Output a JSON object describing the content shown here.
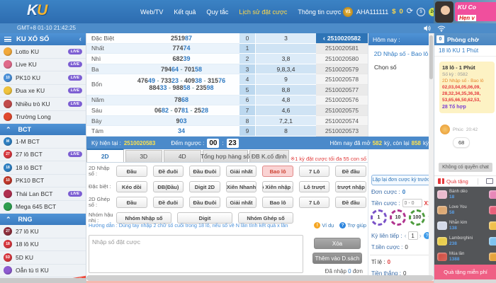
{
  "topbar": {
    "logo": {
      "k": "K",
      "u": "U"
    },
    "nav": [
      {
        "id": "webtv",
        "label": "Web/TV"
      },
      {
        "id": "ket-qua",
        "label": "Kết quả"
      },
      {
        "id": "quy-tac",
        "label": "Quy tắc"
      },
      {
        "id": "lich-su-dat-cuoc",
        "label": "Lịch sử đặt cược"
      },
      {
        "id": "thong-tin-cuoc",
        "label": "Thông tin cược",
        "chevron": true
      }
    ],
    "active_index": 3,
    "user": {
      "level": "V1",
      "name": "AHA111111",
      "currency": "$",
      "balance": "0"
    },
    "quick_icons": [
      {
        "name": "refresh-icon",
        "glyph": "⟳"
      },
      {
        "name": "dollar-icon",
        "glyph": "$"
      },
      {
        "name": "24h-icon",
        "glyph": "24"
      }
    ],
    "banner": {
      "line1": "KU Co",
      "line2": "Hẹn v"
    }
  },
  "timebar": {
    "gmt": "GMT+8 01-10 21:42:25"
  },
  "sidebar": {
    "header": "KU XỔ SỐ",
    "back_chevron": "‹",
    "rows": [
      {
        "type": "item",
        "label": "Lotto KU",
        "live": true,
        "icon": {
          "color": "#f2a93b",
          "text": ""
        }
      },
      {
        "type": "item",
        "label": "Live KU",
        "live": true,
        "icon": {
          "color": "#e06a8a",
          "text": ""
        }
      },
      {
        "type": "item",
        "label": "PK10 KU",
        "live": true,
        "icon": {
          "color": "#4a90d9",
          "text": "10"
        }
      },
      {
        "type": "item",
        "label": "Đua xe KU",
        "live": true,
        "icon": {
          "color": "#f0c33c",
          "text": ""
        }
      },
      {
        "type": "item",
        "label": "Nhiều trò KU",
        "live": true,
        "icon": {
          "color": "#c24b4b",
          "text": ""
        }
      },
      {
        "type": "item",
        "label": "Trường Long",
        "live": false,
        "icon": {
          "color": "#e0492e",
          "text": ""
        }
      },
      {
        "type": "section",
        "label": "BCT"
      },
      {
        "type": "item",
        "label": "1-M BCT",
        "live": false,
        "icon": {
          "color": "#2f80c3",
          "text": "M"
        }
      },
      {
        "type": "item",
        "label": "27 lô BCT",
        "live": true,
        "icon": {
          "color": "#d8383f",
          "text": "27"
        }
      },
      {
        "type": "item",
        "label": "18 lô BCT",
        "live": false,
        "icon": {
          "color": "#2f80c3",
          "text": "18"
        }
      },
      {
        "type": "item",
        "label": "PK10 BCT",
        "live": false,
        "icon": {
          "color": "#c0392b",
          "text": "10"
        }
      },
      {
        "type": "item",
        "label": "Thái Lan BCT",
        "live": true,
        "icon": {
          "color": "#b03050",
          "text": ""
        }
      },
      {
        "type": "item",
        "label": "Mega 645 BCT",
        "live": false,
        "icon": {
          "color": "#2e9e4f",
          "text": ""
        }
      },
      {
        "type": "section",
        "label": "RNG"
      },
      {
        "type": "item",
        "label": "27 lô KU",
        "live": false,
        "icon": {
          "color": "#8e2f3c",
          "text": "27"
        }
      },
      {
        "type": "item",
        "label": "18 lô KU",
        "live": false,
        "icon": {
          "color": "#d8383f",
          "text": "18"
        }
      },
      {
        "type": "item",
        "label": "5D KU",
        "live": false,
        "icon": {
          "color": "#d8383f",
          "text": "5D"
        }
      },
      {
        "type": "item",
        "label": "Oẳn tù tì KU",
        "live": false,
        "icon": {
          "color": "#8e5bd1",
          "text": ""
        }
      },
      {
        "type": "item",
        "label": "Xóc Đĩa KU",
        "live": false,
        "new": true,
        "icon": {
          "color": "#6b4f3a",
          "text": ""
        }
      }
    ]
  },
  "results": {
    "rows": [
      {
        "label": "Đặc Biệt",
        "lines": [
          [
            "251987"
          ]
        ]
      },
      {
        "label": "Nhất",
        "lines": [
          [
            "77474"
          ]
        ]
      },
      {
        "label": "Nhì",
        "lines": [
          [
            "68239"
          ]
        ]
      },
      {
        "label": "Ba",
        "lines": [
          [
            "79464",
            "70158"
          ]
        ]
      },
      {
        "label": "Bốn",
        "lines": [
          [
            "47649",
            "73323",
            "40938",
            "31576"
          ],
          [
            "88433",
            "98858",
            "23598"
          ]
        ]
      },
      {
        "label": "Năm",
        "lines": [
          [
            "7868"
          ]
        ]
      },
      {
        "label": "Sáu",
        "lines": [
          [
            "0682",
            "0781",
            "2528"
          ]
        ]
      },
      {
        "label": "Bảy",
        "lines": [
          [
            "903"
          ]
        ]
      },
      {
        "label": "Tám",
        "lines": [
          [
            "34"
          ]
        ]
      }
    ]
  },
  "digit_panel": {
    "rows": [
      {
        "digit": "0",
        "values": "3"
      },
      {
        "digit": "1",
        "values": ""
      },
      {
        "digit": "2",
        "values": "3,8"
      },
      {
        "digit": "3",
        "values": "9,8,3,4"
      },
      {
        "digit": "4",
        "values": "9"
      },
      {
        "digit": "5",
        "values": "8,8"
      },
      {
        "digit": "6",
        "values": "4,8"
      },
      {
        "digit": "7",
        "values": "4,6"
      },
      {
        "digit": "8",
        "values": "7,2,1"
      },
      {
        "digit": "9",
        "values": "8"
      }
    ]
  },
  "periods": {
    "selected_index": 0,
    "selected_chevron": "‹",
    "list": [
      "2510020582",
      "2510020581",
      "2510020580",
      "2510020579",
      "2510020578",
      "2510020577",
      "2510020576",
      "2510020575",
      "2510020574",
      "2510020573"
    ]
  },
  "infobar": {
    "current_label": "Kỳ hiện tại :",
    "current_value": "2510020583",
    "countdown_label": "Đếm ngược :",
    "mm": "00",
    "colon": ":",
    "ss": "23",
    "today": {
      "t1": "Hôm nay đã mở",
      "v1": "582",
      "t2": "kỳ, còn lại",
      "v2": "858",
      "t3": "kỳ"
    }
  },
  "today_panel": {
    "header": "Hôm nay :",
    "link": "2D Nhập số - Bao lô",
    "choose": "Chọn số"
  },
  "bet": {
    "tabs": [
      {
        "label": "2D",
        "active": true
      },
      {
        "label": "3D",
        "active": false
      },
      {
        "label": "4D",
        "active": false
      },
      {
        "label": "Tổng hợp hàng số",
        "active": false
      },
      {
        "label": "ĐB K.cố định",
        "active": false
      }
    ],
    "note": "※1 kỳ đặt cược tối đa 55 con số",
    "rows": [
      {
        "label": "2D Nhập số :",
        "buttons": [
          "Đầu",
          "Đề đuôi",
          "Đầu Đuôi",
          "Giải nhất",
          "Bao lô",
          "7 Lô",
          "Đề đầu"
        ],
        "selected": 4,
        "short": false
      },
      {
        "label": "Đặc biệt :",
        "buttons": [
          "Kéo dồi",
          "ĐB(Đầu)",
          "Digit 2D",
          "Xiên Nhanh",
          "Lô Xiên nhập số",
          "Lô trượt",
          "Lô trượt nhập số"
        ],
        "selected": -1,
        "short": false
      },
      {
        "label": "2D Ghép số :",
        "buttons": [
          "Đầu",
          "Đề đuôi",
          "Đầu Đuôi",
          "Giải nhất",
          "Bao lô",
          "7 Lô",
          "Đề đầu"
        ],
        "selected": -1,
        "short": false
      },
      {
        "label": "Nhóm hậu nhị :",
        "buttons": [
          "Nhóm Nhập số",
          "Digit",
          "Nhóm Ghép số"
        ],
        "selected": -1,
        "short": true
      }
    ],
    "guide": "Hướng dẫn : Dùng tay nhập 2 chữ số cuối trong 18 lô, nếu số về N lần tính kết quả x lần",
    "example_label": "Ví dụ",
    "help_label": "Trợ giúp",
    "input_placeholder": "Nhập số đặt cược",
    "clear_label": "Xóa",
    "add_label": "Thêm vào D.sách",
    "entered": {
      "t1": "Đã nhập",
      "v": "0",
      "t2": "đơn"
    }
  },
  "betpanel": {
    "repeat_label": "Lặp lại đơn cược kỳ trước",
    "don_label": "Đơn cược :",
    "don_value": "0",
    "tien_label": "Tiền cược :",
    "tien_placeholder": "0 - 0",
    "mult": "X18",
    "chips": [
      {
        "value": "1",
        "color": "#7a52c7"
      },
      {
        "value": "10",
        "color": "#b0348f"
      },
      {
        "value": "100",
        "color": "#4e9c3e"
      }
    ],
    "ky_label": "Kỳ liên tiếp :",
    "ky_value": "1",
    "ttien_label": "T.tiền cược :",
    "ttien_value": "0",
    "tile_label": "Tỉ lệ :",
    "tile_value": "0",
    "tthang_label": "Tiền thắng :",
    "tthang_value": "0"
  },
  "chat": {
    "unread": "0",
    "header": "Phòng chờ",
    "room": "18 lô KU 1 Phút",
    "bubble": {
      "title": "18 lô - 1 Phút",
      "sub": "Số kỳ : 0582",
      "type": "2D Nhập số - Bao lô",
      "nums": [
        "02,03,04,05,06,09,",
        "28,32,34,35,36,38,",
        "53,65,66,50,62,53,"
      ],
      "combo": "28 Tổ hợp"
    },
    "message": {
      "user": "Phúc",
      "time": "20:42",
      "text": "68"
    },
    "no_permission": "Không có quyền chat",
    "gift_tab": "Quà tặng",
    "gifts": [
      {
        "name": "Bánh dẻo",
        "value": "18",
        "color": "#e8b4c8"
      },
      {
        "name": "Love You",
        "value": "58",
        "color": "#d9a066"
      },
      {
        "name": "Nhẫn kim",
        "value": "138",
        "color": "#cfd6e6"
      },
      {
        "name": "Lamborghini",
        "value": "238",
        "color": "#e8c93c"
      },
      {
        "name": "Múa lân",
        "value": "1388",
        "color": "#d0483c"
      }
    ],
    "gifts_partial": [
      "#e887b8",
      "#e8607a",
      "#f0c04c",
      "#7ec3f0",
      "#e8a43c"
    ],
    "free_bar": "Quà tặng miễn phí"
  }
}
